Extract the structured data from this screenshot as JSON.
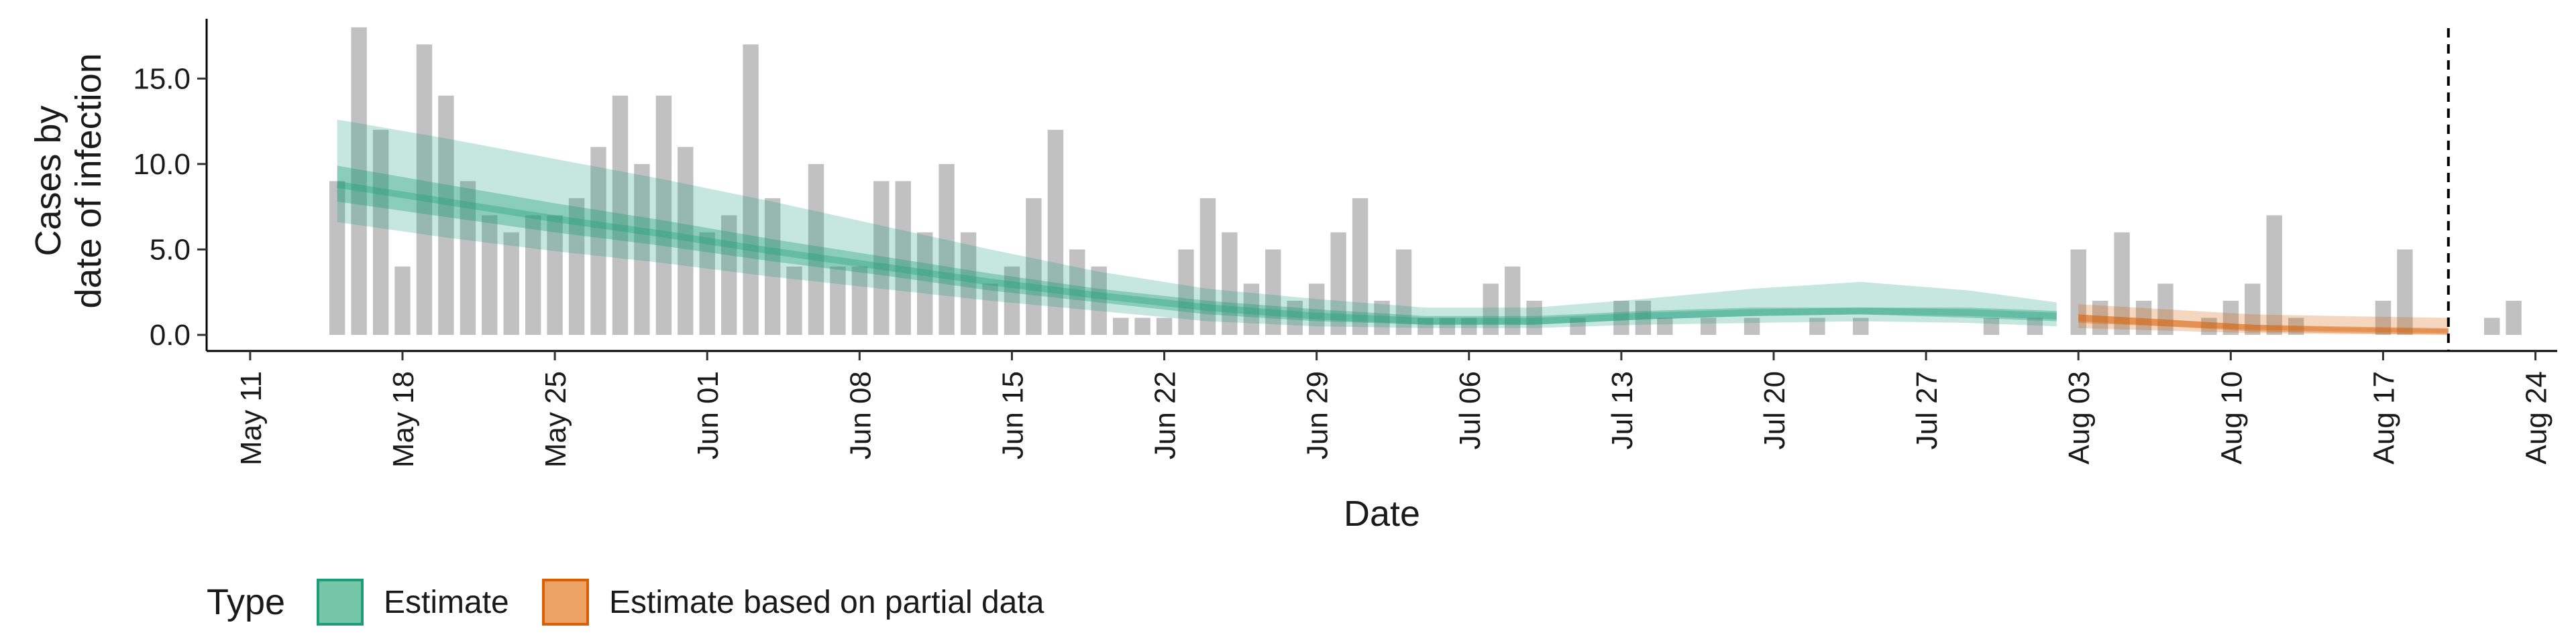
{
  "chart_data": {
    "type": "bar",
    "xlabel": "Date",
    "ylabel": [
      "Cases by",
      "date of infection"
    ],
    "x_range": [
      "2020-05-09",
      "2020-08-25"
    ],
    "ylim": [
      0,
      18.5
    ],
    "y_ticks": [
      {
        "value": 0,
        "label": "0.0"
      },
      {
        "value": 5,
        "label": "5.0"
      },
      {
        "value": 10,
        "label": "10.0"
      },
      {
        "value": 15,
        "label": "15.0"
      }
    ],
    "x_ticks": [
      {
        "date": "2020-05-11",
        "label": "May 11"
      },
      {
        "date": "2020-05-18",
        "label": "May 18"
      },
      {
        "date": "2020-05-25",
        "label": "May 25"
      },
      {
        "date": "2020-06-01",
        "label": "Jun 01"
      },
      {
        "date": "2020-06-08",
        "label": "Jun 08"
      },
      {
        "date": "2020-06-15",
        "label": "Jun 15"
      },
      {
        "date": "2020-06-22",
        "label": "Jun 22"
      },
      {
        "date": "2020-06-29",
        "label": "Jun 29"
      },
      {
        "date": "2020-07-06",
        "label": "Jul 06"
      },
      {
        "date": "2020-07-13",
        "label": "Jul 13"
      },
      {
        "date": "2020-07-20",
        "label": "Jul 20"
      },
      {
        "date": "2020-07-27",
        "label": "Jul 27"
      },
      {
        "date": "2020-08-03",
        "label": "Aug 03"
      },
      {
        "date": "2020-08-10",
        "label": "Aug 10"
      },
      {
        "date": "2020-08-17",
        "label": "Aug 17"
      },
      {
        "date": "2020-08-24",
        "label": "Aug 24"
      }
    ],
    "grid": false,
    "vline_date": "2020-08-20",
    "bar_color": "#bebebe",
    "bars": {
      "start_date": "2020-05-15",
      "values": [
        9,
        18,
        12,
        4,
        17,
        14,
        9,
        7,
        6,
        7,
        7,
        8,
        11,
        14,
        10,
        14,
        11,
        6,
        7,
        17,
        8,
        4,
        10,
        4,
        4,
        9,
        9,
        6,
        10,
        6,
        3,
        4,
        8,
        12,
        5,
        4,
        1,
        1,
        1,
        5,
        8,
        6,
        3,
        5,
        2,
        3,
        6,
        8,
        2,
        5,
        1,
        1,
        1,
        3,
        4,
        2,
        0,
        1,
        0,
        2,
        2,
        1,
        0,
        1,
        0,
        1,
        0,
        0,
        1,
        0,
        1,
        0,
        0,
        0,
        0,
        0,
        1,
        0,
        1,
        0,
        5,
        2,
        6,
        2,
        3,
        0,
        1,
        2,
        3,
        7,
        1,
        0,
        0,
        0,
        2,
        5,
        0,
        0,
        0,
        1,
        2
      ],
      "partial_from": "2020-08-02"
    },
    "series": [
      {
        "name": "Estimate",
        "color": "#1b9e77",
        "x": [
          "2020-05-15",
          "2020-05-20",
          "2020-05-25",
          "2020-05-30",
          "2020-06-04",
          "2020-06-09",
          "2020-06-14",
          "2020-06-19",
          "2020-06-24",
          "2020-06-29",
          "2020-07-04",
          "2020-07-09",
          "2020-07-14",
          "2020-07-19",
          "2020-07-24",
          "2020-07-29",
          "2020-08-02"
        ],
        "median": [
          8.8,
          7.8,
          6.8,
          5.9,
          4.9,
          4.0,
          3.1,
          2.3,
          1.6,
          1.1,
          0.8,
          0.8,
          1.1,
          1.3,
          1.4,
          1.3,
          1.1
        ],
        "lower50": [
          7.8,
          6.9,
          6.0,
          5.2,
          4.3,
          3.5,
          2.6,
          1.9,
          1.2,
          0.8,
          0.6,
          0.6,
          0.9,
          1.1,
          1.2,
          1.0,
          0.8
        ],
        "upper50": [
          9.9,
          8.8,
          7.7,
          6.7,
          5.6,
          4.6,
          3.6,
          2.7,
          2.0,
          1.5,
          1.1,
          1.1,
          1.4,
          1.6,
          1.6,
          1.6,
          1.4
        ],
        "lower90": [
          6.6,
          5.7,
          4.9,
          4.2,
          3.4,
          2.7,
          2.0,
          1.4,
          0.8,
          0.5,
          0.4,
          0.4,
          0.6,
          0.7,
          0.8,
          0.7,
          0.5
        ],
        "upper90": [
          12.6,
          11.5,
          10.3,
          9.1,
          7.8,
          6.4,
          5.0,
          3.7,
          2.7,
          2.1,
          1.6,
          1.6,
          2.1,
          2.7,
          3.1,
          2.6,
          1.9
        ]
      },
      {
        "name": "Estimate based on partial data",
        "color": "#d95f02",
        "x": [
          "2020-08-03",
          "2020-08-07",
          "2020-08-11",
          "2020-08-15",
          "2020-08-20"
        ],
        "median": [
          1.0,
          0.7,
          0.4,
          0.3,
          0.2
        ],
        "lower50": [
          0.7,
          0.5,
          0.3,
          0.2,
          0.1
        ],
        "upper50": [
          1.2,
          0.9,
          0.6,
          0.45,
          0.35
        ],
        "lower90": [
          0.4,
          0.25,
          0.1,
          0.05,
          0.02
        ],
        "upper90": [
          1.8,
          1.5,
          1.2,
          1.1,
          1.0
        ]
      }
    ]
  },
  "legend": {
    "title": "Type",
    "items": [
      {
        "label": "Estimate",
        "fill": "#74c6a6",
        "stroke": "#1b9e77"
      },
      {
        "label": "Estimate based on partial data",
        "fill": "#eca263",
        "stroke": "#d95f02"
      }
    ]
  }
}
